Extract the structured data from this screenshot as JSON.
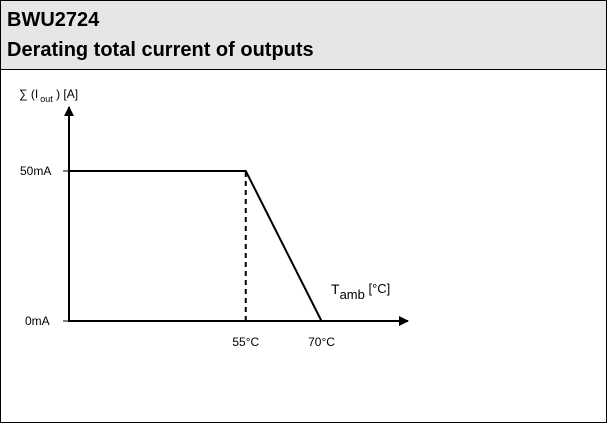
{
  "header": {
    "model": "BWU2724",
    "title": "Derating total current of outputs"
  },
  "chart_data": {
    "type": "line",
    "title": "Derating total current of outputs",
    "ylabel": {
      "prefix": "∑ (I",
      "sub": "out",
      "suffix": " ) [A]"
    },
    "xlabel": {
      "base": "T",
      "sub": "amb",
      "suffix": " [°C]"
    },
    "y_ticks": [
      {
        "value": 0,
        "label": "0mA"
      },
      {
        "value": 50,
        "label": "50mA"
      }
    ],
    "x_ticks": [
      {
        "value": 55,
        "label": "55°C"
      },
      {
        "value": 70,
        "label": "70°C"
      }
    ],
    "xlim": [
      20,
      80
    ],
    "ylim": [
      0,
      65
    ],
    "series": [
      {
        "x": [
          20,
          55,
          70
        ],
        "y": [
          50,
          50,
          0
        ]
      }
    ],
    "reference_lines": [
      {
        "x": 55,
        "y_from": 0,
        "y_to": 50,
        "style": "dashed"
      }
    ],
    "grid": false,
    "colors": {
      "line": "#000000",
      "header_bg": "#e6e6e6"
    }
  }
}
